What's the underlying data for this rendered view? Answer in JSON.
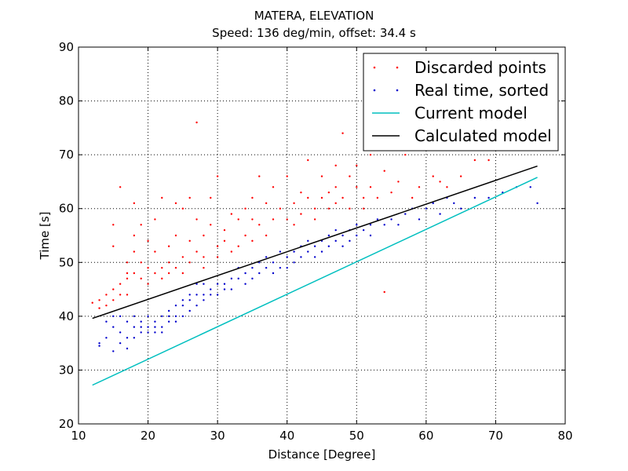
{
  "chart_data": {
    "type": "scatter",
    "title": "MATERA, ELEVATION",
    "subtitle": "Speed: 136 deg/min, offset: 34.4 s",
    "xlabel": "Distance [Degree]",
    "ylabel": "Time [s]",
    "xlim": [
      10,
      80
    ],
    "ylim": [
      20,
      90
    ],
    "xticks": [
      "10",
      "20",
      "30",
      "40",
      "50",
      "60",
      "70",
      "80"
    ],
    "yticks": [
      "20",
      "30",
      "40",
      "50",
      "60",
      "70",
      "80",
      "90"
    ],
    "grid": true,
    "legend_position": "top-right",
    "series": [
      {
        "name": "Discarded points",
        "kind": "points",
        "color": "#ff0000",
        "points": [
          [
            12,
            42.5
          ],
          [
            13,
            41.5
          ],
          [
            13,
            43
          ],
          [
            14,
            44
          ],
          [
            14,
            42
          ],
          [
            15,
            45
          ],
          [
            15,
            43
          ],
          [
            15,
            57
          ],
          [
            15,
            53
          ],
          [
            16,
            64
          ],
          [
            16,
            44
          ],
          [
            16,
            46
          ],
          [
            17,
            47
          ],
          [
            17,
            48
          ],
          [
            17,
            50
          ],
          [
            17,
            44
          ],
          [
            18,
            61
          ],
          [
            18,
            48
          ],
          [
            18,
            52
          ],
          [
            18,
            55
          ],
          [
            19,
            50
          ],
          [
            19,
            57
          ],
          [
            19,
            47
          ],
          [
            20,
            54
          ],
          [
            20,
            49
          ],
          [
            20,
            46
          ],
          [
            21,
            48
          ],
          [
            21,
            52
          ],
          [
            21,
            58
          ],
          [
            22,
            62
          ],
          [
            22,
            49
          ],
          [
            22,
            47
          ],
          [
            23,
            48
          ],
          [
            23,
            50
          ],
          [
            23,
            53
          ],
          [
            24,
            55
          ],
          [
            24,
            49
          ],
          [
            24,
            61
          ],
          [
            25,
            51
          ],
          [
            25,
            48
          ],
          [
            25,
            60
          ],
          [
            26,
            62
          ],
          [
            26,
            54
          ],
          [
            26,
            50
          ],
          [
            27,
            76
          ],
          [
            27,
            52
          ],
          [
            27,
            58
          ],
          [
            28,
            49
          ],
          [
            28,
            55
          ],
          [
            28,
            51
          ],
          [
            29,
            57
          ],
          [
            29,
            62
          ],
          [
            30,
            66
          ],
          [
            30,
            53
          ],
          [
            30,
            51
          ],
          [
            31,
            54
          ],
          [
            31,
            56
          ],
          [
            32,
            59
          ],
          [
            32,
            52
          ],
          [
            33,
            58
          ],
          [
            33,
            53
          ],
          [
            34,
            60
          ],
          [
            34,
            55
          ],
          [
            35,
            62
          ],
          [
            35,
            58
          ],
          [
            35,
            54
          ],
          [
            36,
            66
          ],
          [
            36,
            57
          ],
          [
            37,
            61
          ],
          [
            37,
            55
          ],
          [
            38,
            64
          ],
          [
            38,
            58
          ],
          [
            39,
            60
          ],
          [
            40,
            66
          ],
          [
            40,
            58
          ],
          [
            41,
            61
          ],
          [
            41,
            57
          ],
          [
            42,
            63
          ],
          [
            42,
            59
          ],
          [
            43,
            69
          ],
          [
            43,
            62
          ],
          [
            44,
            60
          ],
          [
            44,
            58
          ],
          [
            45,
            66
          ],
          [
            45,
            62
          ],
          [
            46,
            63
          ],
          [
            46,
            60
          ],
          [
            47,
            68
          ],
          [
            47,
            64
          ],
          [
            47,
            61
          ],
          [
            48,
            74
          ],
          [
            48,
            62
          ],
          [
            49,
            66
          ],
          [
            49,
            60
          ],
          [
            50,
            68
          ],
          [
            50,
            64
          ],
          [
            51,
            62
          ],
          [
            51,
            60
          ],
          [
            52,
            70
          ],
          [
            52,
            64
          ],
          [
            53,
            62
          ],
          [
            54,
            67
          ],
          [
            54,
            44.5
          ],
          [
            55,
            63
          ],
          [
            56,
            65
          ],
          [
            57,
            70
          ],
          [
            58,
            62
          ],
          [
            59,
            64
          ],
          [
            60,
            72
          ],
          [
            61,
            66
          ],
          [
            62,
            65
          ],
          [
            63,
            64
          ],
          [
            65,
            66
          ],
          [
            67,
            69
          ],
          [
            69,
            69
          ],
          [
            72,
            71
          ]
        ]
      },
      {
        "name": "Real time, sorted",
        "kind": "points",
        "color": "#0000cc",
        "points": [
          [
            13,
            34.5
          ],
          [
            13,
            35
          ],
          [
            14,
            39
          ],
          [
            14,
            36
          ],
          [
            15,
            38
          ],
          [
            15,
            40
          ],
          [
            15,
            33.5
          ],
          [
            16,
            35
          ],
          [
            16,
            40
          ],
          [
            16,
            37
          ],
          [
            17,
            39
          ],
          [
            17,
            36
          ],
          [
            17,
            34
          ],
          [
            18,
            38
          ],
          [
            18,
            40
          ],
          [
            18,
            36
          ],
          [
            19,
            38
          ],
          [
            19,
            37
          ],
          [
            19,
            39
          ],
          [
            20,
            38
          ],
          [
            20,
            37
          ],
          [
            20,
            40
          ],
          [
            21,
            39
          ],
          [
            21,
            37
          ],
          [
            21,
            38
          ],
          [
            22,
            40
          ],
          [
            22,
            38
          ],
          [
            22,
            37
          ],
          [
            23,
            40
          ],
          [
            23,
            39
          ],
          [
            23,
            41
          ],
          [
            24,
            39
          ],
          [
            24,
            42
          ],
          [
            24,
            40
          ],
          [
            25,
            42
          ],
          [
            25,
            40
          ],
          [
            25,
            43
          ],
          [
            26,
            44
          ],
          [
            26,
            41
          ],
          [
            26,
            43
          ],
          [
            27,
            44
          ],
          [
            27,
            42
          ],
          [
            27,
            46
          ],
          [
            28,
            44
          ],
          [
            28,
            43
          ],
          [
            28,
            46
          ],
          [
            29,
            45
          ],
          [
            29,
            44
          ],
          [
            30,
            46
          ],
          [
            30,
            44
          ],
          [
            31,
            46
          ],
          [
            31,
            45
          ],
          [
            32,
            47
          ],
          [
            32,
            45
          ],
          [
            33,
            49
          ],
          [
            33,
            47
          ],
          [
            34,
            48
          ],
          [
            34,
            46
          ],
          [
            35,
            49
          ],
          [
            35,
            47
          ],
          [
            36,
            50
          ],
          [
            36,
            48
          ],
          [
            37,
            49
          ],
          [
            37,
            51
          ],
          [
            38,
            50
          ],
          [
            38,
            48
          ],
          [
            39,
            52
          ],
          [
            39,
            49
          ],
          [
            40,
            51
          ],
          [
            40,
            49
          ],
          [
            41,
            52
          ],
          [
            41,
            50
          ],
          [
            42,
            53
          ],
          [
            42,
            51
          ],
          [
            43,
            52
          ],
          [
            43,
            54
          ],
          [
            44,
            53
          ],
          [
            44,
            51
          ],
          [
            45,
            54
          ],
          [
            45,
            52
          ],
          [
            46,
            55
          ],
          [
            46,
            53
          ],
          [
            47,
            54
          ],
          [
            47,
            56
          ],
          [
            48,
            55
          ],
          [
            48,
            53
          ],
          [
            49,
            56
          ],
          [
            49,
            54
          ],
          [
            50,
            57
          ],
          [
            50,
            55
          ],
          [
            51,
            56
          ],
          [
            52,
            57
          ],
          [
            52,
            55
          ],
          [
            53,
            58
          ],
          [
            54,
            57
          ],
          [
            55,
            58
          ],
          [
            56,
            57
          ],
          [
            57,
            59
          ],
          [
            58,
            60
          ],
          [
            59,
            58
          ],
          [
            60,
            60
          ],
          [
            61,
            61
          ],
          [
            62,
            59
          ],
          [
            63,
            62
          ],
          [
            64,
            61
          ],
          [
            65,
            60
          ],
          [
            67,
            62
          ],
          [
            69,
            62
          ],
          [
            71,
            63
          ],
          [
            73,
            64
          ],
          [
            75,
            64
          ],
          [
            76,
            61
          ]
        ]
      },
      {
        "name": "Current model",
        "kind": "line",
        "color": "#00bfbf",
        "points": [
          [
            12,
            27.2
          ],
          [
            76,
            65.8
          ]
        ]
      },
      {
        "name": "Calculated model",
        "kind": "line",
        "color": "#000000",
        "points": [
          [
            12,
            39.6
          ],
          [
            76,
            67.9
          ]
        ]
      }
    ]
  }
}
